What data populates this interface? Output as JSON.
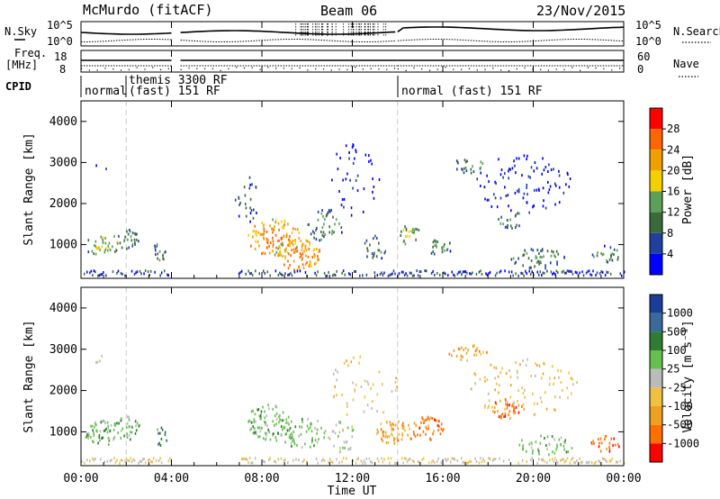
{
  "header": {
    "station": "McMurdo (fitACF)",
    "beam": "Beam 06",
    "date": "23/Nov/2015"
  },
  "top_panels": {
    "nsky_label": "N.Sky",
    "nsearch_label": "N.Search",
    "nsky_ticks": [
      "10^5",
      "10^0"
    ],
    "freq_label_1": "Freq.",
    "freq_label_2": "[MHz]",
    "freq_ticks": [
      "18",
      "8"
    ],
    "nave_label": "Nave",
    "nave_ticks": [
      "60",
      "0"
    ],
    "cpid_label": "CPID",
    "cpid_segments": [
      "normal",
      "themis 3300 RF",
      "(fast) 151 RF",
      "normal (fast) 151 RF"
    ]
  },
  "chart_data": [
    {
      "type": "heatmap",
      "name": "power",
      "ylabel": "Slant Range [km]",
      "y_ticks": [
        "4000",
        "3000",
        "2000",
        "1000"
      ],
      "ylim": [
        180,
        4500
      ],
      "x_ticks": [
        "00:00",
        "04:00",
        "08:00",
        "12:00",
        "16:00",
        "20:00",
        "00:00"
      ],
      "colorbar_label": "Power [dB]",
      "colorbar_ticks": [
        "28",
        "24",
        "20",
        "16",
        "12",
        "8",
        "4"
      ],
      "colorbar_colors": [
        "#ff0000",
        "#ff6600",
        "#f0a000",
        "#f5d000",
        "#5aa05a",
        "#3a6a3a",
        "#2040a0",
        "#0000ff"
      ],
      "blobs": [
        {
          "t": 0.9,
          "r": 1000,
          "dt": 0.8,
          "dr": 260,
          "level": 4,
          "density": 0.55
        },
        {
          "t": 2.0,
          "r": 1150,
          "dt": 0.6,
          "dr": 250,
          "level": 3,
          "density": 0.5
        },
        {
          "t": 3.5,
          "r": 900,
          "dt": 0.3,
          "dr": 250,
          "level": 3,
          "density": 0.5
        },
        {
          "t": 0.9,
          "r": 2950,
          "dt": 0.3,
          "dr": 120,
          "level": 1,
          "density": 0.25
        },
        {
          "t": 8.5,
          "r": 1200,
          "dt": 1.2,
          "dr": 450,
          "level": 6,
          "density": 0.5
        },
        {
          "t": 9.6,
          "r": 800,
          "dt": 1.0,
          "dr": 400,
          "level": 6,
          "density": 0.55
        },
        {
          "t": 10.8,
          "r": 1500,
          "dt": 0.8,
          "dr": 400,
          "level": 3,
          "density": 0.35
        },
        {
          "t": 7.3,
          "r": 2100,
          "dt": 0.5,
          "dr": 600,
          "level": 2,
          "density": 0.25
        },
        {
          "t": 13.0,
          "r": 950,
          "dt": 0.6,
          "dr": 300,
          "level": 3,
          "density": 0.45
        },
        {
          "t": 14.5,
          "r": 1250,
          "dt": 0.5,
          "dr": 250,
          "level": 4,
          "density": 0.5
        },
        {
          "t": 15.8,
          "r": 950,
          "dt": 0.6,
          "dr": 200,
          "level": 3,
          "density": 0.5
        },
        {
          "t": 17.1,
          "r": 2950,
          "dt": 0.7,
          "dr": 180,
          "level": 3,
          "density": 0.5
        },
        {
          "t": 19.0,
          "r": 1650,
          "dt": 0.6,
          "dr": 220,
          "level": 3,
          "density": 0.5
        },
        {
          "t": 20.2,
          "r": 700,
          "dt": 1.3,
          "dr": 250,
          "level": 3,
          "density": 0.45
        },
        {
          "t": 23.2,
          "r": 800,
          "dt": 0.7,
          "dr": 200,
          "level": 3,
          "density": 0.5
        },
        {
          "t": 19.5,
          "r": 2500,
          "dt": 2.2,
          "dr": 700,
          "level": 1,
          "density": 0.18
        },
        {
          "t": 12.0,
          "r": 2600,
          "dt": 1.2,
          "dr": 900,
          "level": 1,
          "density": 0.12
        }
      ]
    },
    {
      "type": "heatmap",
      "name": "velocity",
      "ylabel": "Slant Range [km]",
      "y_ticks": [
        "4000",
        "3000",
        "2000",
        "1000"
      ],
      "ylim": [
        180,
        4500
      ],
      "x_ticks": [
        "00:00",
        "04:00",
        "08:00",
        "12:00",
        "16:00",
        "20:00",
        "00:00"
      ],
      "xlabel": "Time UT",
      "colorbar_label": "Velocity [m s⁻¹]",
      "colorbar_ticks": [
        "1000",
        "500",
        "100",
        "25",
        "-25",
        "-100",
        "-500",
        "-1000"
      ],
      "colorbar_colors": [
        "#1a3d9a",
        "#3a6a9a",
        "#2e7d32",
        "#66c050",
        "#bbbbbb",
        "#f0c040",
        "#f0a020",
        "#ff7000",
        "#ff0000"
      ],
      "blobs": [
        {
          "t": 0.9,
          "r": 1000,
          "dt": 0.8,
          "dr": 300,
          "c": 3,
          "density": 0.55
        },
        {
          "t": 2.0,
          "r": 1100,
          "dt": 0.6,
          "dr": 300,
          "c": 3,
          "density": 0.5
        },
        {
          "t": 3.5,
          "r": 900,
          "dt": 0.3,
          "dr": 250,
          "c": 2,
          "density": 0.5
        },
        {
          "t": 0.7,
          "r": 2800,
          "dt": 0.3,
          "dr": 150,
          "c": 4,
          "density": 0.3
        },
        {
          "t": 8.3,
          "r": 1250,
          "dt": 1.0,
          "dr": 450,
          "c": 3,
          "density": 0.6
        },
        {
          "t": 9.8,
          "r": 1000,
          "dt": 1.0,
          "dr": 400,
          "c": 3,
          "density": 0.45
        },
        {
          "t": 11.5,
          "r": 900,
          "dt": 0.6,
          "dr": 400,
          "c": 4,
          "density": 0.35
        },
        {
          "t": 13.8,
          "r": 1000,
          "dt": 0.9,
          "dr": 300,
          "c": 6,
          "density": 0.55
        },
        {
          "t": 15.3,
          "r": 1100,
          "dt": 0.7,
          "dr": 300,
          "c": 7,
          "density": 0.55
        },
        {
          "t": 17.1,
          "r": 2950,
          "dt": 0.9,
          "dr": 200,
          "c": 6,
          "density": 0.5
        },
        {
          "t": 18.8,
          "r": 1600,
          "dt": 0.7,
          "dr": 250,
          "c": 7,
          "density": 0.55
        },
        {
          "t": 20.5,
          "r": 700,
          "dt": 1.3,
          "dr": 250,
          "c": 3,
          "density": 0.4
        },
        {
          "t": 23.2,
          "r": 750,
          "dt": 0.7,
          "dr": 200,
          "c": 7,
          "density": 0.5
        },
        {
          "t": 19.5,
          "r": 2100,
          "dt": 2.5,
          "dr": 700,
          "c": 5,
          "density": 0.15
        },
        {
          "t": 12.5,
          "r": 2200,
          "dt": 1.5,
          "dr": 900,
          "c": 5,
          "density": 0.1
        }
      ]
    }
  ],
  "axis_xlabel": "Time UT"
}
